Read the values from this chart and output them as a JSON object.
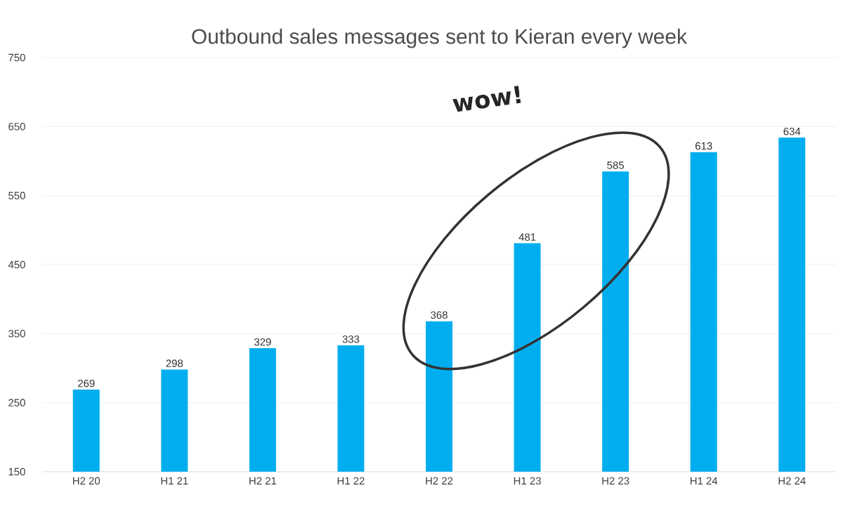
{
  "chart_data": {
    "type": "bar",
    "title": "Outbound sales messages sent to Kieran every week",
    "categories": [
      "H2 20",
      "H1 21",
      "H2 21",
      "H1 22",
      "H2 22",
      "H1 23",
      "H2 23",
      "H1 24",
      "H2 24"
    ],
    "values": [
      269,
      298,
      329,
      333,
      368,
      481,
      585,
      613,
      634
    ],
    "color": "#00aeef",
    "ylim": [
      150,
      750
    ],
    "yticks": [
      150,
      250,
      350,
      450,
      550,
      650,
      750
    ],
    "grid": "y",
    "data_labels": true,
    "annotations": [
      "wow!"
    ]
  }
}
